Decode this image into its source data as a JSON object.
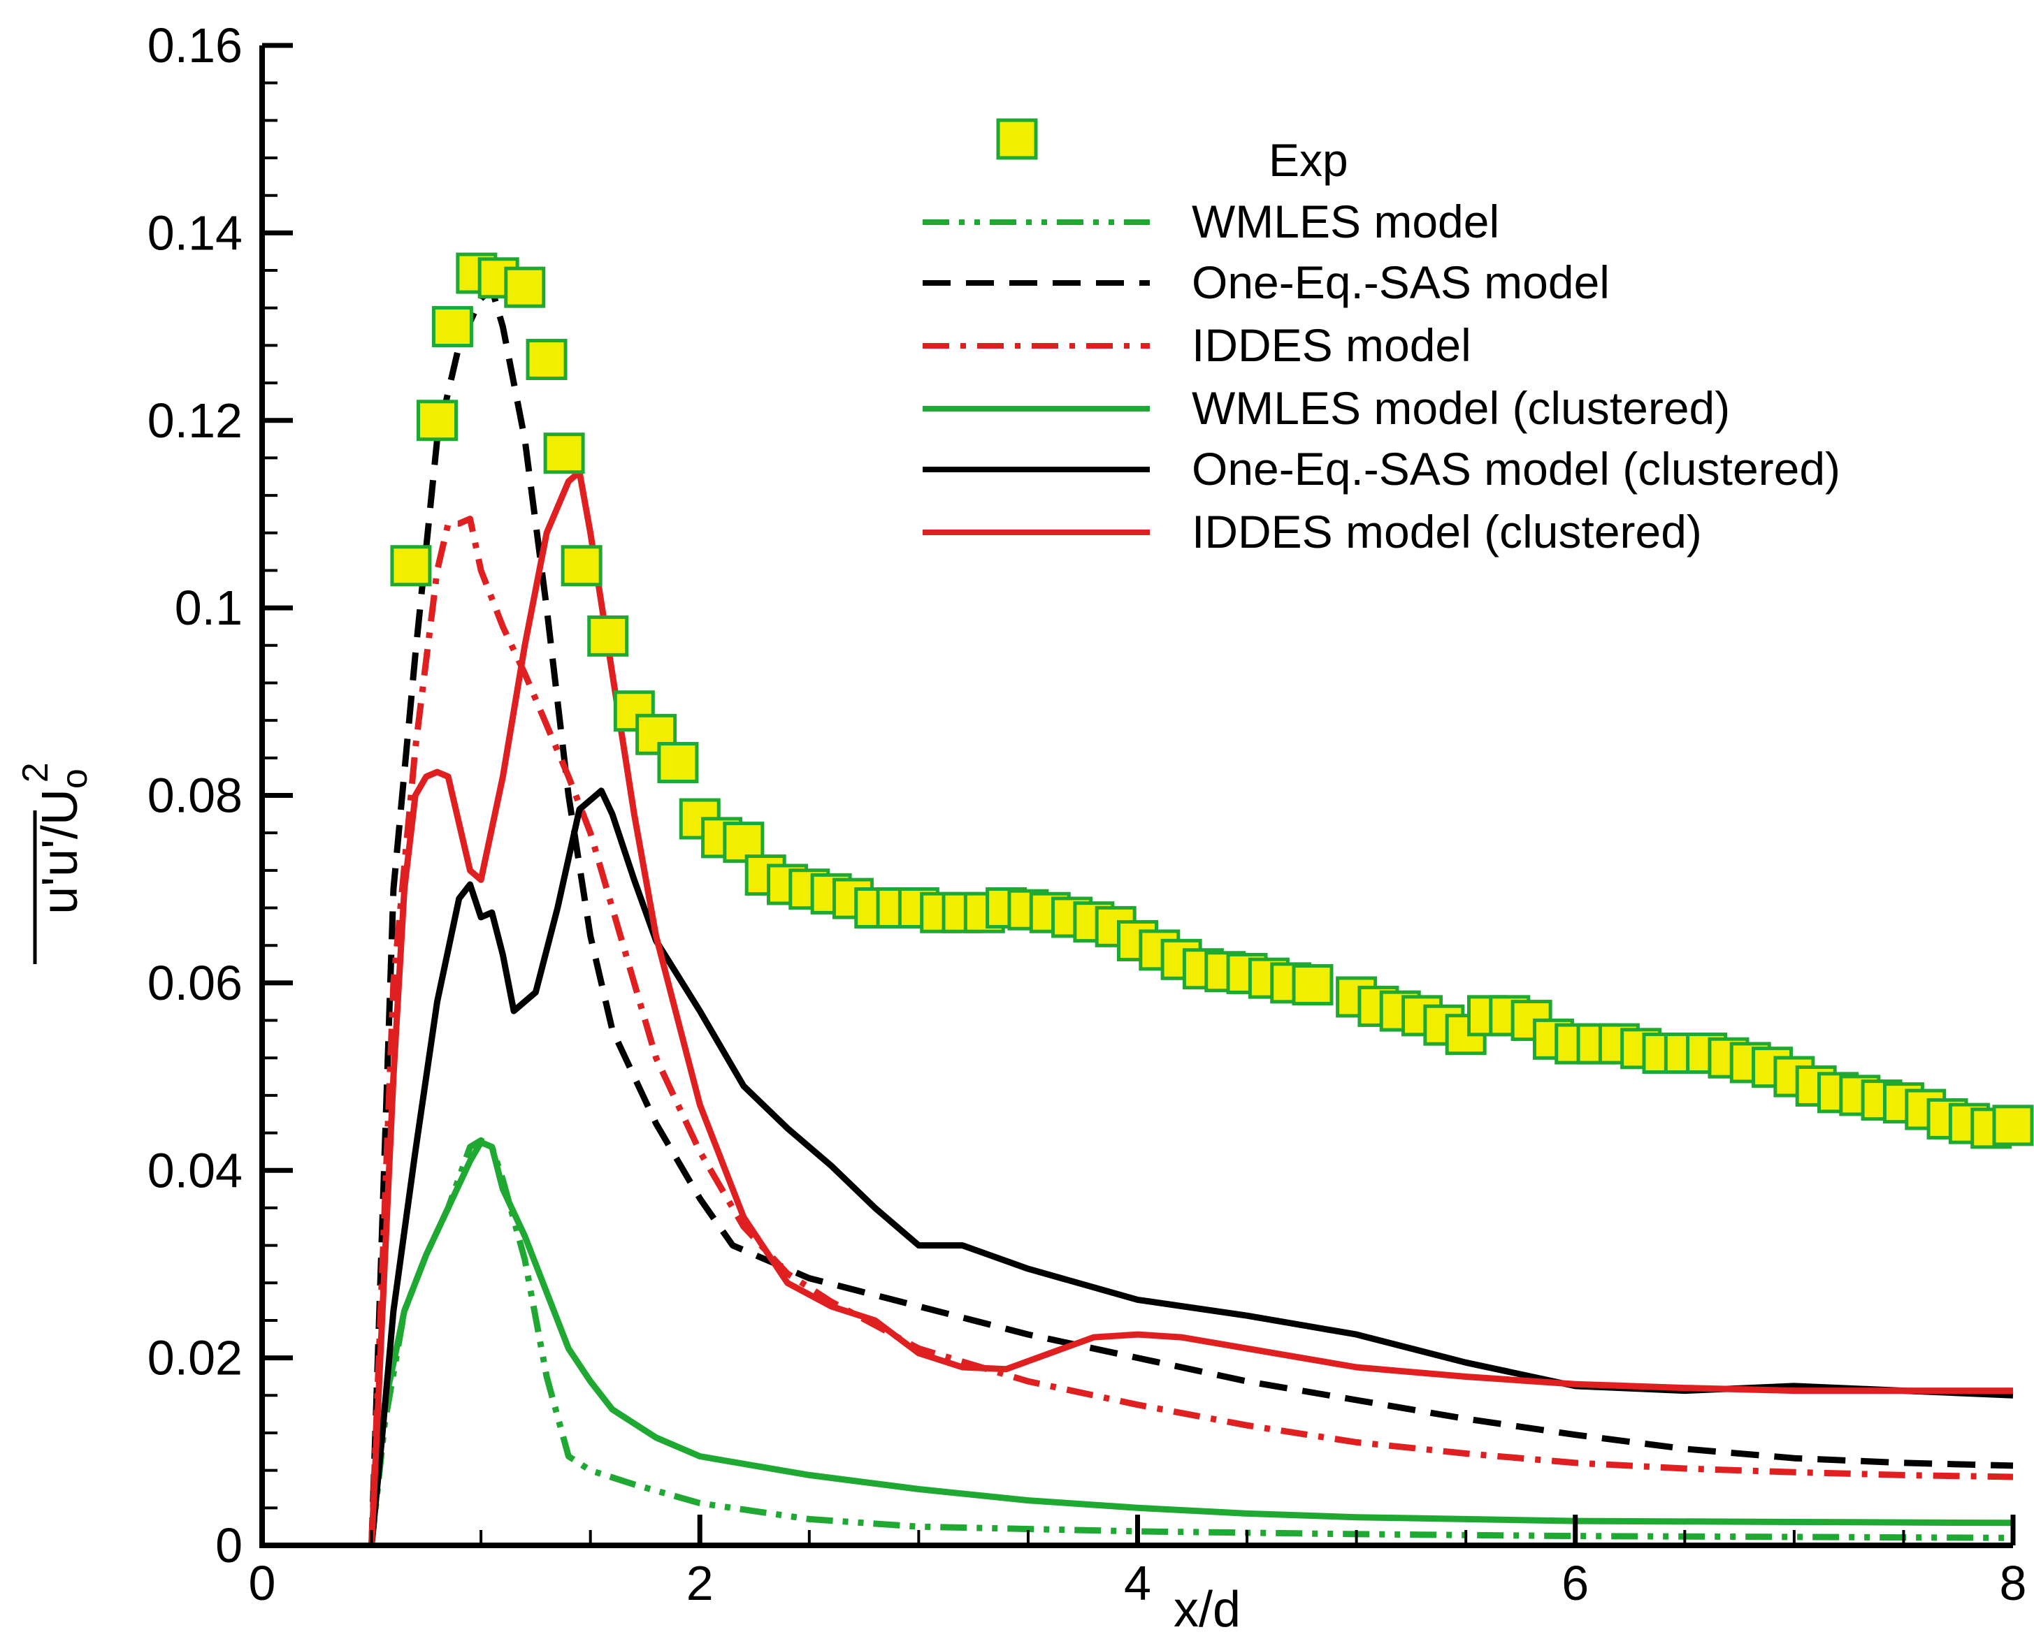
{
  "chart_data": {
    "type": "line",
    "title": "",
    "xlabel": "x/d",
    "ylabel": "u'u'/U_o^2",
    "ylabel_parts": {
      "main": "u'u'/U",
      "sub": "o",
      "sup": "2"
    },
    "xlim": [
      0,
      8
    ],
    "ylim": [
      0,
      0.16
    ],
    "xticks": [
      0,
      2,
      4,
      6,
      8
    ],
    "xtick_labels": [
      "0",
      "2",
      "4",
      "6",
      "8"
    ],
    "yticks": [
      0,
      0.02,
      0.04,
      0.06,
      0.08,
      0.1,
      0.12,
      0.14,
      0.16
    ],
    "ytick_labels": [
      "0",
      "0.02",
      "0.04",
      "0.06",
      "0.08",
      "0.1",
      "0.12",
      "0.14",
      "0.16"
    ],
    "grid": false,
    "legend_position": "top-right",
    "series": [
      {
        "name": "Exp",
        "style": "markers",
        "color": "#1fa832",
        "fill": "#f2ee00",
        "x": [
          0.68,
          0.8,
          0.87,
          0.98,
          1.08,
          1.2,
          1.3,
          1.38,
          1.46,
          1.58,
          1.7,
          1.8,
          1.9,
          2.0,
          2.1,
          2.2,
          2.3,
          2.4,
          2.5,
          2.6,
          2.7,
          2.8,
          2.9,
          3.0,
          3.1,
          3.2,
          3.3,
          3.4,
          3.5,
          3.6,
          3.7,
          3.8,
          3.9,
          4.0,
          4.1,
          4.2,
          4.3,
          4.4,
          4.5,
          4.6,
          4.7,
          4.8,
          5.0,
          5.1,
          5.2,
          5.3,
          5.4,
          5.5,
          5.6,
          5.7,
          5.8,
          5.9,
          6.0,
          6.1,
          6.2,
          6.3,
          6.4,
          6.5,
          6.6,
          6.7,
          6.8,
          6.9,
          7.0,
          7.1,
          7.2,
          7.3,
          7.4,
          7.5,
          7.6,
          7.7,
          7.8,
          7.9,
          8.0
        ],
        "values": [
          0.1045,
          0.12,
          0.13,
          0.1357,
          0.1352,
          0.1342,
          0.1265,
          0.1165,
          0.1045,
          0.097,
          0.089,
          0.0865,
          0.0835,
          0.0775,
          0.0755,
          0.075,
          0.0715,
          0.0705,
          0.07,
          0.0695,
          0.069,
          0.068,
          0.068,
          0.068,
          0.0675,
          0.0675,
          0.0675,
          0.068,
          0.0678,
          0.0675,
          0.067,
          0.0665,
          0.066,
          0.0645,
          0.0635,
          0.0625,
          0.0615,
          0.0612,
          0.061,
          0.0605,
          0.06,
          0.0598,
          0.0585,
          0.0575,
          0.057,
          0.0565,
          0.0555,
          0.0545,
          0.0565,
          0.0565,
          0.056,
          0.054,
          0.0535,
          0.0535,
          0.0535,
          0.053,
          0.0525,
          0.0525,
          0.0525,
          0.052,
          0.0515,
          0.051,
          0.05,
          0.049,
          0.0483,
          0.048,
          0.0475,
          0.0472,
          0.0465,
          0.0455,
          0.045,
          0.0445,
          0.0448
        ]
      },
      {
        "name": "WMLES model",
        "style": "dash-dot-dot",
        "color": "#1fa832",
        "x": [
          0.5,
          0.56,
          0.65,
          0.75,
          0.85,
          0.95,
          1.0,
          1.05,
          1.1,
          1.2,
          1.3,
          1.4,
          1.5,
          1.7,
          2.0,
          2.5,
          3.0,
          4.0,
          5.0,
          6.0,
          7.0,
          8.0
        ],
        "values": [
          0.0,
          0.013,
          0.025,
          0.031,
          0.036,
          0.0425,
          0.0432,
          0.0425,
          0.039,
          0.0305,
          0.018,
          0.0095,
          0.008,
          0.0065,
          0.0045,
          0.0028,
          0.002,
          0.0015,
          0.0012,
          0.001,
          0.0009,
          0.0008
        ]
      },
      {
        "name": "One-Eq.-SAS model",
        "style": "dashed",
        "color": "#000000",
        "x": [
          0.5,
          0.55,
          0.6,
          0.7,
          0.8,
          0.9,
          1.0,
          1.05,
          1.1,
          1.2,
          1.3,
          1.4,
          1.5,
          1.6,
          1.8,
          2.0,
          2.15,
          2.5,
          3.0,
          3.5,
          4.0,
          4.5,
          5.0,
          5.5,
          6.0,
          6.5,
          7.0,
          7.5,
          8.0
        ],
        "values": [
          0.0,
          0.035,
          0.07,
          0.095,
          0.118,
          0.128,
          0.133,
          0.134,
          0.13,
          0.118,
          0.1,
          0.08,
          0.065,
          0.055,
          0.045,
          0.037,
          0.032,
          0.0285,
          0.0255,
          0.0225,
          0.02,
          0.0175,
          0.0155,
          0.0135,
          0.0118,
          0.0103,
          0.0093,
          0.0088,
          0.0085
        ]
      },
      {
        "name": "IDDES model",
        "style": "dash-dot",
        "color": "#e02020",
        "x": [
          0.5,
          0.55,
          0.6,
          0.7,
          0.8,
          0.85,
          0.9,
          0.95,
          1.0,
          1.1,
          1.2,
          1.3,
          1.4,
          1.5,
          1.6,
          1.7,
          1.8,
          2.0,
          2.2,
          2.4,
          2.6,
          2.8,
          3.0,
          3.5,
          4.0,
          4.5,
          5.0,
          5.5,
          6.0,
          6.5,
          7.0,
          7.5,
          8.0
        ],
        "values": [
          0.0,
          0.03,
          0.06,
          0.085,
          0.104,
          0.109,
          0.109,
          0.1095,
          0.104,
          0.098,
          0.093,
          0.0875,
          0.082,
          0.076,
          0.068,
          0.06,
          0.052,
          0.042,
          0.034,
          0.029,
          0.026,
          0.0235,
          0.021,
          0.0175,
          0.015,
          0.0128,
          0.011,
          0.0098,
          0.0088,
          0.0082,
          0.0078,
          0.0075,
          0.0073
        ]
      },
      {
        "name": "WMLES model (clustered)",
        "style": "solid",
        "color": "#1fa832",
        "x": [
          0.5,
          0.56,
          0.65,
          0.75,
          0.85,
          0.95,
          1.0,
          1.05,
          1.1,
          1.2,
          1.3,
          1.4,
          1.5,
          1.6,
          1.8,
          2.0,
          2.5,
          3.0,
          3.5,
          4.0,
          4.5,
          5.0,
          5.5,
          6.0,
          7.0,
          8.0
        ],
        "values": [
          0.0,
          0.015,
          0.025,
          0.031,
          0.036,
          0.041,
          0.043,
          0.0425,
          0.038,
          0.033,
          0.027,
          0.021,
          0.0175,
          0.0145,
          0.0115,
          0.0095,
          0.0075,
          0.006,
          0.0048,
          0.004,
          0.0034,
          0.003,
          0.0028,
          0.0026,
          0.0025,
          0.0024
        ]
      },
      {
        "name": "One-Eq.-SAS model (clustered)",
        "style": "solid",
        "color": "#000000",
        "x": [
          0.5,
          0.55,
          0.6,
          0.7,
          0.8,
          0.9,
          0.95,
          1.0,
          1.05,
          1.1,
          1.15,
          1.25,
          1.35,
          1.45,
          1.55,
          1.6,
          1.7,
          1.8,
          2.0,
          2.2,
          2.4,
          2.6,
          2.8,
          3.0,
          3.2,
          3.5,
          4.0,
          4.5,
          5.0,
          5.5,
          6.0,
          6.5,
          7.0,
          7.5,
          8.0
        ],
        "values": [
          0.0,
          0.012,
          0.025,
          0.042,
          0.058,
          0.069,
          0.0705,
          0.067,
          0.0675,
          0.063,
          0.057,
          0.059,
          0.068,
          0.0785,
          0.0805,
          0.078,
          0.071,
          0.0645,
          0.057,
          0.049,
          0.0445,
          0.0405,
          0.036,
          0.032,
          0.032,
          0.0295,
          0.0262,
          0.0245,
          0.0225,
          0.0195,
          0.017,
          0.0165,
          0.017,
          0.0165,
          0.016
        ]
      },
      {
        "name": "IDDES model (clustered)",
        "style": "solid",
        "color": "#e02020",
        "x": [
          0.5,
          0.55,
          0.6,
          0.65,
          0.7,
          0.75,
          0.8,
          0.85,
          0.9,
          0.95,
          1.0,
          1.1,
          1.2,
          1.3,
          1.4,
          1.45,
          1.5,
          1.6,
          1.7,
          1.8,
          2.0,
          2.2,
          2.4,
          2.6,
          2.8,
          3.0,
          3.2,
          3.4,
          3.6,
          3.8,
          4.0,
          4.2,
          4.5,
          5.0,
          5.5,
          6.0,
          6.5,
          7.0,
          7.5,
          8.0
        ],
        "values": [
          0.0,
          0.025,
          0.05,
          0.07,
          0.08,
          0.082,
          0.0825,
          0.082,
          0.077,
          0.072,
          0.071,
          0.082,
          0.096,
          0.108,
          0.1135,
          0.1145,
          0.108,
          0.093,
          0.078,
          0.065,
          0.047,
          0.035,
          0.028,
          0.0255,
          0.024,
          0.0205,
          0.019,
          0.0188,
          0.0205,
          0.0222,
          0.0225,
          0.0222,
          0.021,
          0.019,
          0.018,
          0.0172,
          0.0168,
          0.0165,
          0.0165,
          0.0165
        ]
      }
    ]
  }
}
